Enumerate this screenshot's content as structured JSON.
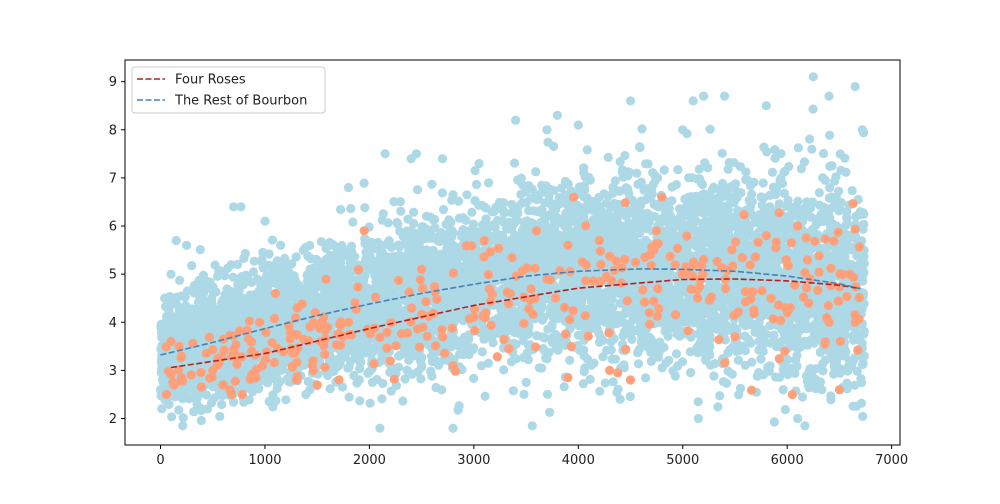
{
  "chart_data": {
    "type": "scatter",
    "title": "",
    "xlabel": "",
    "ylabel": "",
    "xlim": [
      -340,
      7080
    ],
    "ylim": [
      1.45,
      9.45
    ],
    "xticks": [
      0,
      1000,
      2000,
      3000,
      4000,
      5000,
      6000,
      7000
    ],
    "yticks": [
      2,
      3,
      4,
      5,
      6,
      7,
      8,
      9
    ],
    "grid": false,
    "legend_position": "top-left",
    "scatter_series": [
      {
        "name": "",
        "color": "#add8e6",
        "point_count": 6700,
        "x_range": [
          0,
          6740
        ],
        "sample_points": [
          [
            0,
            2.6
          ],
          [
            40,
            4.5
          ],
          [
            100,
            5.0
          ],
          [
            150,
            5.7
          ],
          [
            250,
            5.6
          ],
          [
            350,
            2.3
          ],
          [
            450,
            2.2
          ],
          [
            700,
            6.4
          ],
          [
            770,
            6.4
          ],
          [
            1000,
            6.1
          ],
          [
            1150,
            5.6
          ],
          [
            1650,
            5.6
          ],
          [
            1800,
            6.8
          ],
          [
            2100,
            1.8
          ],
          [
            2150,
            7.5
          ],
          [
            2400,
            7.4
          ],
          [
            2450,
            7.5
          ],
          [
            2700,
            7.4
          ],
          [
            2800,
            1.8
          ],
          [
            3050,
            7.3
          ],
          [
            3400,
            8.2
          ],
          [
            3700,
            8.0
          ],
          [
            3800,
            8.3
          ],
          [
            4000,
            8.1
          ],
          [
            4400,
            2.4
          ],
          [
            4500,
            8.6
          ],
          [
            5000,
            8.0
          ],
          [
            5100,
            8.6
          ],
          [
            5150,
            2.0
          ],
          [
            5200,
            8.7
          ],
          [
            5400,
            8.7
          ],
          [
            5800,
            8.5
          ],
          [
            6100,
            2.0
          ],
          [
            6250,
            9.1
          ],
          [
            6400,
            8.7
          ],
          [
            6650,
            8.9
          ],
          [
            6720,
            8.0
          ]
        ]
      },
      {
        "name": "",
        "color": "#ffa07a",
        "point_count": 330,
        "x_range": [
          50,
          6700
        ],
        "sample_points": [
          [
            100,
            3.6
          ],
          [
            200,
            3.3
          ],
          [
            500,
            3.0
          ],
          [
            600,
            2.7
          ],
          [
            950,
            4.0
          ],
          [
            1100,
            4.6
          ],
          [
            1300,
            2.8
          ],
          [
            1500,
            2.7
          ],
          [
            1600,
            3.9
          ],
          [
            1800,
            4.0
          ],
          [
            1950,
            5.9
          ],
          [
            2200,
            3.2
          ],
          [
            2500,
            5.1
          ],
          [
            2800,
            3.1
          ],
          [
            3100,
            5.7
          ],
          [
            3600,
            5.9
          ],
          [
            3700,
            4.9
          ],
          [
            3900,
            5.6
          ],
          [
            4200,
            5.7
          ],
          [
            4300,
            3.0
          ],
          [
            4500,
            2.8
          ],
          [
            4750,
            5.9
          ],
          [
            4800,
            6.6
          ],
          [
            5200,
            5.3
          ],
          [
            5500,
            3.7
          ],
          [
            5800,
            5.8
          ],
          [
            6050,
            2.5
          ],
          [
            6100,
            6.0
          ],
          [
            6400,
            4.0
          ],
          [
            6500,
            2.6
          ],
          [
            6600,
            5.0
          ],
          [
            6650,
            4.0
          ]
        ]
      }
    ],
    "series": [
      {
        "name": "Four Roses",
        "type": "line",
        "style": "dashed",
        "color": "#b22222",
        "x": [
          100,
          1000,
          2000,
          3000,
          4000,
          5000,
          5500,
          6000,
          6500,
          6700
        ],
        "y": [
          3.06,
          3.35,
          3.87,
          4.35,
          4.71,
          4.89,
          4.9,
          4.86,
          4.77,
          4.7
        ]
      },
      {
        "name": "The Rest of Bourbon",
        "type": "line",
        "style": "dashed",
        "color": "#4682b4",
        "x": [
          0,
          500,
          1000,
          1500,
          2000,
          2500,
          3000,
          3500,
          4000,
          4600,
          5000,
          5500,
          6000,
          6500,
          6700
        ],
        "y": [
          3.32,
          3.58,
          3.87,
          4.14,
          4.38,
          4.6,
          4.79,
          4.96,
          5.06,
          5.11,
          5.1,
          5.06,
          4.96,
          4.8,
          4.7
        ]
      }
    ]
  }
}
